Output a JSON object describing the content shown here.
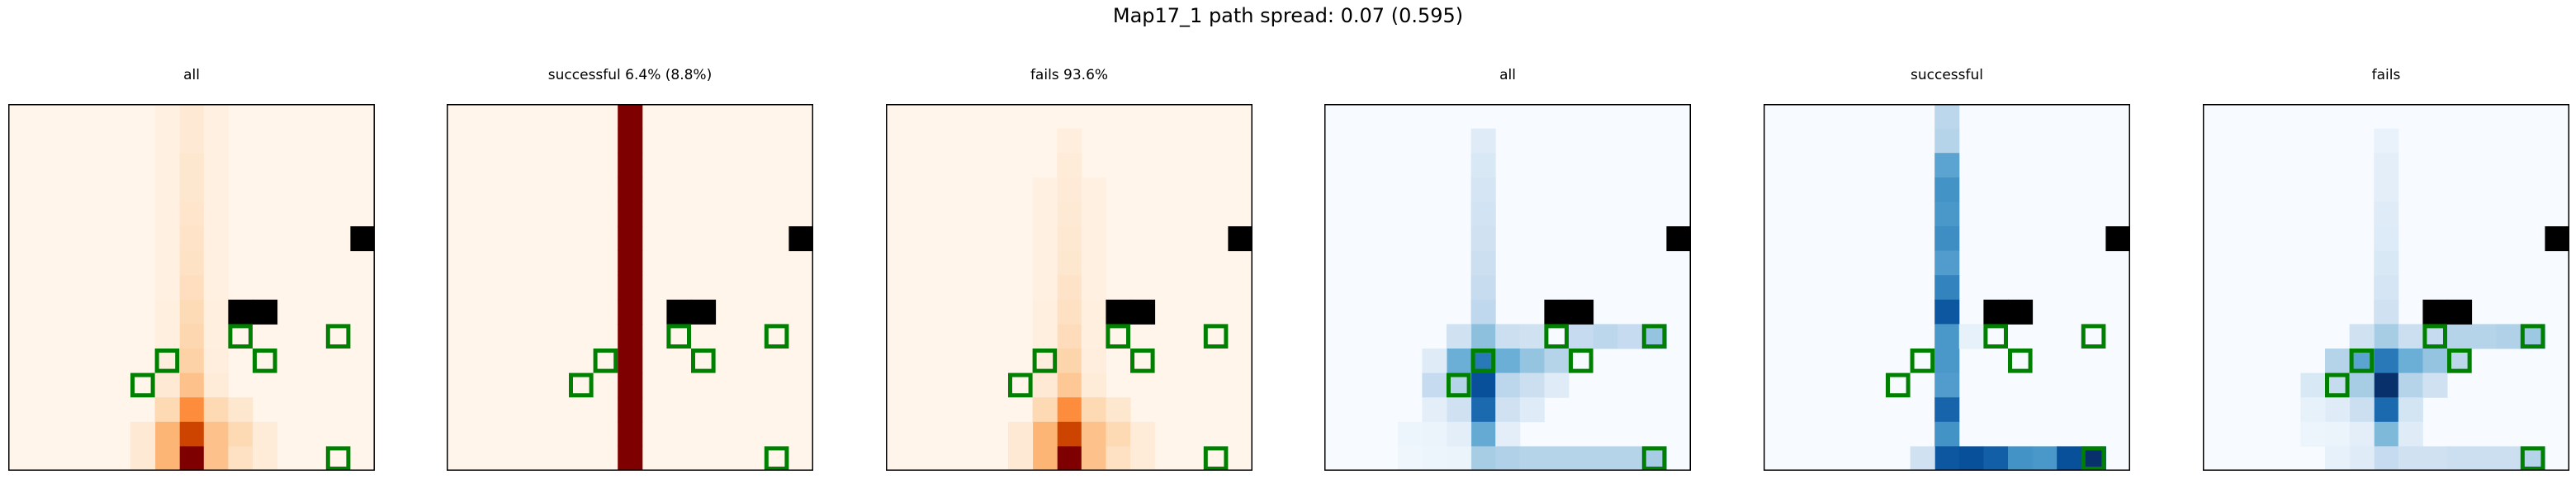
{
  "title": "Map17_1 path spread: 0.07 (0.595)",
  "chart_data": {
    "type": "heatmap",
    "grid": [
      15,
      15
    ],
    "obstacles": [
      [
        14,
        5
      ],
      [
        9,
        8
      ],
      [
        10,
        8
      ]
    ],
    "goals": [
      [
        13,
        9
      ],
      [
        6,
        10
      ],
      [
        10,
        10
      ],
      [
        5,
        11
      ],
      [
        9,
        9
      ],
      [
        13,
        14
      ]
    ],
    "panels": [
      {
        "title": "all",
        "colormap": "Oranges",
        "cells": [
          [
            7,
            0,
            0.1
          ],
          [
            7,
            1,
            0.1
          ],
          [
            7,
            2,
            0.12
          ],
          [
            7,
            3,
            0.12
          ],
          [
            7,
            4,
            0.13
          ],
          [
            7,
            5,
            0.14
          ],
          [
            7,
            6,
            0.15
          ],
          [
            7,
            7,
            0.17
          ],
          [
            7,
            8,
            0.19
          ],
          [
            7,
            9,
            0.21
          ],
          [
            7,
            10,
            0.24
          ],
          [
            7,
            11,
            0.3
          ],
          [
            7,
            12,
            0.5
          ],
          [
            7,
            13,
            0.78
          ],
          [
            7,
            14,
            1.0
          ],
          [
            6,
            11,
            0.1
          ],
          [
            6,
            12,
            0.2
          ],
          [
            6,
            13,
            0.35
          ],
          [
            6,
            14,
            0.35
          ],
          [
            8,
            11,
            0.08
          ],
          [
            8,
            12,
            0.2
          ],
          [
            8,
            13,
            0.3
          ],
          [
            8,
            14,
            0.3
          ],
          [
            9,
            12,
            0.12
          ],
          [
            9,
            13,
            0.2
          ],
          [
            9,
            14,
            0.16
          ],
          [
            5,
            13,
            0.1
          ],
          [
            5,
            14,
            0.1
          ],
          [
            10,
            13,
            0.08
          ],
          [
            10,
            14,
            0.08
          ],
          [
            6,
            0,
            0.04
          ],
          [
            6,
            1,
            0.04
          ],
          [
            6,
            2,
            0.04
          ],
          [
            6,
            3,
            0.04
          ],
          [
            6,
            4,
            0.04
          ],
          [
            6,
            5,
            0.04
          ],
          [
            6,
            6,
            0.04
          ],
          [
            6,
            7,
            0.04
          ],
          [
            6,
            8,
            0.05
          ],
          [
            6,
            9,
            0.05
          ],
          [
            6,
            10,
            0.06
          ],
          [
            8,
            0,
            0.04
          ],
          [
            8,
            1,
            0.04
          ],
          [
            8,
            2,
            0.04
          ],
          [
            8,
            3,
            0.04
          ],
          [
            8,
            4,
            0.04
          ],
          [
            8,
            5,
            0.04
          ],
          [
            8,
            6,
            0.04
          ],
          [
            8,
            7,
            0.04
          ],
          [
            8,
            8,
            0.05
          ],
          [
            8,
            9,
            0.05
          ],
          [
            8,
            10,
            0.06
          ]
        ]
      },
      {
        "title": "successful 6.4% (8.8%)",
        "colormap": "Oranges",
        "cells": [
          [
            7,
            0,
            1.0
          ],
          [
            7,
            1,
            1.0
          ],
          [
            7,
            2,
            1.0
          ],
          [
            7,
            3,
            1.0
          ],
          [
            7,
            4,
            1.0
          ],
          [
            7,
            5,
            1.0
          ],
          [
            7,
            6,
            1.0
          ],
          [
            7,
            7,
            1.0
          ],
          [
            7,
            8,
            1.0
          ],
          [
            7,
            9,
            1.0
          ],
          [
            7,
            10,
            1.0
          ],
          [
            7,
            11,
            1.0
          ],
          [
            7,
            12,
            1.0
          ],
          [
            7,
            13,
            1.0
          ],
          [
            7,
            14,
            1.0
          ]
        ]
      },
      {
        "title": "fails 93.6%",
        "colormap": "Oranges",
        "cells": [
          [
            7,
            1,
            0.06
          ],
          [
            7,
            2,
            0.08
          ],
          [
            7,
            3,
            0.09
          ],
          [
            7,
            4,
            0.1
          ],
          [
            7,
            5,
            0.11
          ],
          [
            7,
            6,
            0.12
          ],
          [
            7,
            7,
            0.14
          ],
          [
            7,
            8,
            0.16
          ],
          [
            7,
            9,
            0.18
          ],
          [
            7,
            10,
            0.22
          ],
          [
            7,
            11,
            0.28
          ],
          [
            7,
            12,
            0.5
          ],
          [
            7,
            13,
            0.78
          ],
          [
            7,
            14,
            1.0
          ],
          [
            6,
            11,
            0.1
          ],
          [
            6,
            12,
            0.2
          ],
          [
            6,
            13,
            0.35
          ],
          [
            6,
            14,
            0.35
          ],
          [
            8,
            11,
            0.08
          ],
          [
            8,
            12,
            0.2
          ],
          [
            8,
            13,
            0.3
          ],
          [
            8,
            14,
            0.3
          ],
          [
            9,
            12,
            0.12
          ],
          [
            9,
            13,
            0.2
          ],
          [
            9,
            14,
            0.16
          ],
          [
            5,
            13,
            0.1
          ],
          [
            5,
            14,
            0.1
          ],
          [
            10,
            13,
            0.08
          ],
          [
            10,
            14,
            0.08
          ],
          [
            6,
            3,
            0.04
          ],
          [
            6,
            4,
            0.04
          ],
          [
            6,
            5,
            0.04
          ],
          [
            6,
            6,
            0.04
          ],
          [
            6,
            7,
            0.04
          ],
          [
            6,
            8,
            0.05
          ],
          [
            6,
            9,
            0.05
          ],
          [
            6,
            10,
            0.06
          ],
          [
            8,
            3,
            0.04
          ],
          [
            8,
            4,
            0.04
          ],
          [
            8,
            5,
            0.04
          ],
          [
            8,
            6,
            0.04
          ],
          [
            8,
            7,
            0.04
          ],
          [
            8,
            8,
            0.05
          ],
          [
            8,
            9,
            0.05
          ],
          [
            8,
            10,
            0.06
          ]
        ]
      },
      {
        "title": "all",
        "colormap": "Blues",
        "cells": [
          [
            6,
            1,
            0.12
          ],
          [
            6,
            2,
            0.15
          ],
          [
            6,
            3,
            0.17
          ],
          [
            6,
            4,
            0.19
          ],
          [
            6,
            5,
            0.2
          ],
          [
            6,
            6,
            0.22
          ],
          [
            6,
            7,
            0.24
          ],
          [
            6,
            8,
            0.27
          ],
          [
            6,
            9,
            0.42
          ],
          [
            6,
            10,
            0.72
          ],
          [
            6,
            11,
            0.88
          ],
          [
            6,
            12,
            0.78
          ],
          [
            6,
            13,
            0.52
          ],
          [
            6,
            14,
            0.35
          ],
          [
            5,
            9,
            0.2
          ],
          [
            5,
            10,
            0.5
          ],
          [
            5,
            11,
            0.3
          ],
          [
            5,
            12,
            0.2
          ],
          [
            5,
            13,
            0.1
          ],
          [
            7,
            9,
            0.22
          ],
          [
            7,
            10,
            0.5
          ],
          [
            7,
            11,
            0.28
          ],
          [
            7,
            12,
            0.2
          ],
          [
            7,
            13,
            0.1
          ],
          [
            8,
            9,
            0.2
          ],
          [
            8,
            10,
            0.4
          ],
          [
            8,
            11,
            0.22
          ],
          [
            8,
            12,
            0.12
          ],
          [
            9,
            10,
            0.3
          ],
          [
            9,
            11,
            0.12
          ],
          [
            10,
            9,
            0.25
          ],
          [
            11,
            9,
            0.28
          ],
          [
            12,
            9,
            0.25
          ],
          [
            13,
            9,
            0.4
          ],
          [
            4,
            10,
            0.12
          ],
          [
            4,
            11,
            0.25
          ],
          [
            4,
            12,
            0.1
          ],
          [
            4,
            13,
            0.06
          ],
          [
            3,
            13,
            0.05
          ],
          [
            3,
            14,
            0.04
          ],
          [
            4,
            14,
            0.05
          ],
          [
            5,
            14,
            0.06
          ],
          [
            7,
            14,
            0.32
          ],
          [
            8,
            14,
            0.3
          ],
          [
            9,
            14,
            0.3
          ],
          [
            10,
            14,
            0.3
          ],
          [
            11,
            14,
            0.3
          ],
          [
            12,
            14,
            0.3
          ],
          [
            13,
            14,
            0.35
          ]
        ]
      },
      {
        "title": "successful",
        "colormap": "Blues",
        "cells": [
          [
            7,
            0,
            0.28
          ],
          [
            7,
            1,
            0.3
          ],
          [
            7,
            2,
            0.55
          ],
          [
            7,
            3,
            0.62
          ],
          [
            7,
            4,
            0.6
          ],
          [
            7,
            5,
            0.64
          ],
          [
            7,
            6,
            0.58
          ],
          [
            7,
            7,
            0.68
          ],
          [
            7,
            8,
            0.85
          ],
          [
            7,
            9,
            0.6
          ],
          [
            7,
            10,
            0.6
          ],
          [
            7,
            11,
            0.58
          ],
          [
            7,
            12,
            0.8
          ],
          [
            7,
            13,
            0.62
          ],
          [
            7,
            14,
            0.85
          ],
          [
            8,
            9,
            0.08
          ],
          [
            6,
            14,
            0.2
          ],
          [
            8,
            14,
            0.88
          ],
          [
            9,
            14,
            0.82
          ],
          [
            10,
            14,
            0.62
          ],
          [
            11,
            14,
            0.6
          ],
          [
            12,
            14,
            0.88
          ],
          [
            13,
            14,
            1.0
          ]
        ]
      },
      {
        "title": "fails",
        "colormap": "Blues",
        "cells": [
          [
            7,
            1,
            0.07
          ],
          [
            7,
            2,
            0.1
          ],
          [
            7,
            3,
            0.1
          ],
          [
            7,
            4,
            0.12
          ],
          [
            7,
            5,
            0.13
          ],
          [
            7,
            6,
            0.15
          ],
          [
            7,
            7,
            0.17
          ],
          [
            7,
            8,
            0.2
          ],
          [
            7,
            9,
            0.35
          ],
          [
            7,
            10,
            0.72
          ],
          [
            7,
            11,
            1.0
          ],
          [
            7,
            12,
            0.78
          ],
          [
            7,
            13,
            0.45
          ],
          [
            7,
            14,
            0.25
          ],
          [
            6,
            9,
            0.2
          ],
          [
            6,
            10,
            0.55
          ],
          [
            6,
            11,
            0.35
          ],
          [
            6,
            12,
            0.22
          ],
          [
            6,
            13,
            0.1
          ],
          [
            6,
            14,
            0.12
          ],
          [
            8,
            9,
            0.22
          ],
          [
            8,
            10,
            0.5
          ],
          [
            8,
            11,
            0.3
          ],
          [
            8,
            12,
            0.18
          ],
          [
            8,
            13,
            0.12
          ],
          [
            8,
            14,
            0.2
          ],
          [
            9,
            9,
            0.25
          ],
          [
            9,
            10,
            0.4
          ],
          [
            9,
            11,
            0.2
          ],
          [
            9,
            14,
            0.2
          ],
          [
            10,
            9,
            0.3
          ],
          [
            10,
            10,
            0.28
          ],
          [
            11,
            9,
            0.3
          ],
          [
            12,
            9,
            0.32
          ],
          [
            13,
            9,
            0.38
          ],
          [
            5,
            10,
            0.3
          ],
          [
            5,
            11,
            0.25
          ],
          [
            5,
            12,
            0.12
          ],
          [
            4,
            11,
            0.15
          ],
          [
            4,
            12,
            0.08
          ],
          [
            4,
            13,
            0.05
          ],
          [
            5,
            13,
            0.06
          ],
          [
            5,
            14,
            0.08
          ],
          [
            10,
            14,
            0.22
          ],
          [
            11,
            14,
            0.22
          ],
          [
            12,
            14,
            0.22
          ],
          [
            13,
            14,
            0.3
          ]
        ]
      }
    ]
  }
}
